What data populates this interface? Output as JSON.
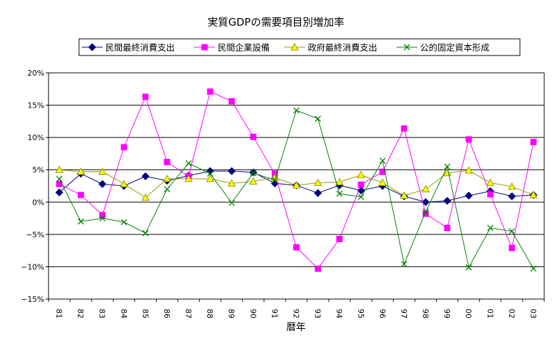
{
  "chart_data": {
    "type": "line",
    "title": "実質GDPの需要項目別増加率",
    "xlabel": "暦年",
    "ylabel": "",
    "ylim": [
      -15,
      20
    ],
    "yticks": [
      20,
      15,
      10,
      5,
      0,
      -5,
      -10,
      -15
    ],
    "ytick_labels": [
      "20%",
      "15%",
      "10%",
      "5%",
      "0%",
      "−5%",
      "−10%",
      "−15%"
    ],
    "grid": true,
    "legend_position": "top",
    "categories": [
      "81",
      "82",
      "83",
      "84",
      "85",
      "86",
      "87",
      "88",
      "89",
      "90",
      "91",
      "92",
      "93",
      "94",
      "95",
      "96",
      "97",
      "98",
      "99",
      "00",
      "01",
      "02",
      "03"
    ],
    "series": [
      {
        "name": "民間最終消費支出",
        "color": "#000080",
        "marker": "diamond",
        "values": [
          1.5,
          4.4,
          2.8,
          2.5,
          4.0,
          3.3,
          4.1,
          4.8,
          4.8,
          4.6,
          2.9,
          2.6,
          1.4,
          2.6,
          1.8,
          2.5,
          0.9,
          0.0,
          0.2,
          1.0,
          1.7,
          0.9,
          1.1
        ]
      },
      {
        "name": "民間企業設備",
        "color": "#ff00ff",
        "marker": "square",
        "values": [
          2.8,
          1.1,
          -2.0,
          8.5,
          16.3,
          6.2,
          4.0,
          17.1,
          15.6,
          10.1,
          4.4,
          -7.0,
          -10.3,
          -5.7,
          2.7,
          4.7,
          11.4,
          -1.8,
          -4.0,
          9.7,
          1.2,
          -7.1,
          9.3
        ]
      },
      {
        "name": "政府最終消費支出",
        "color": "#999900",
        "marker_fill": "#ffff00",
        "marker": "triangle",
        "values": [
          5.0,
          4.7,
          4.7,
          2.8,
          0.7,
          3.6,
          3.6,
          3.6,
          2.9,
          3.2,
          3.8,
          2.6,
          3.0,
          3.1,
          4.2,
          3.0,
          1.0,
          2.0,
          4.5,
          4.9,
          3.0,
          2.4,
          1.1
        ]
      },
      {
        "name": "公的固定資本形成",
        "color": "#008000",
        "marker": "x",
        "values": [
          3.6,
          -3.0,
          -2.5,
          -3.1,
          -4.8,
          2.0,
          6.0,
          4.4,
          -0.1,
          4.5,
          3.4,
          14.2,
          12.9,
          1.3,
          0.8,
          6.4,
          -9.6,
          -1.5,
          5.5,
          -10.1,
          -4.0,
          -4.5,
          -10.3
        ]
      }
    ]
  }
}
